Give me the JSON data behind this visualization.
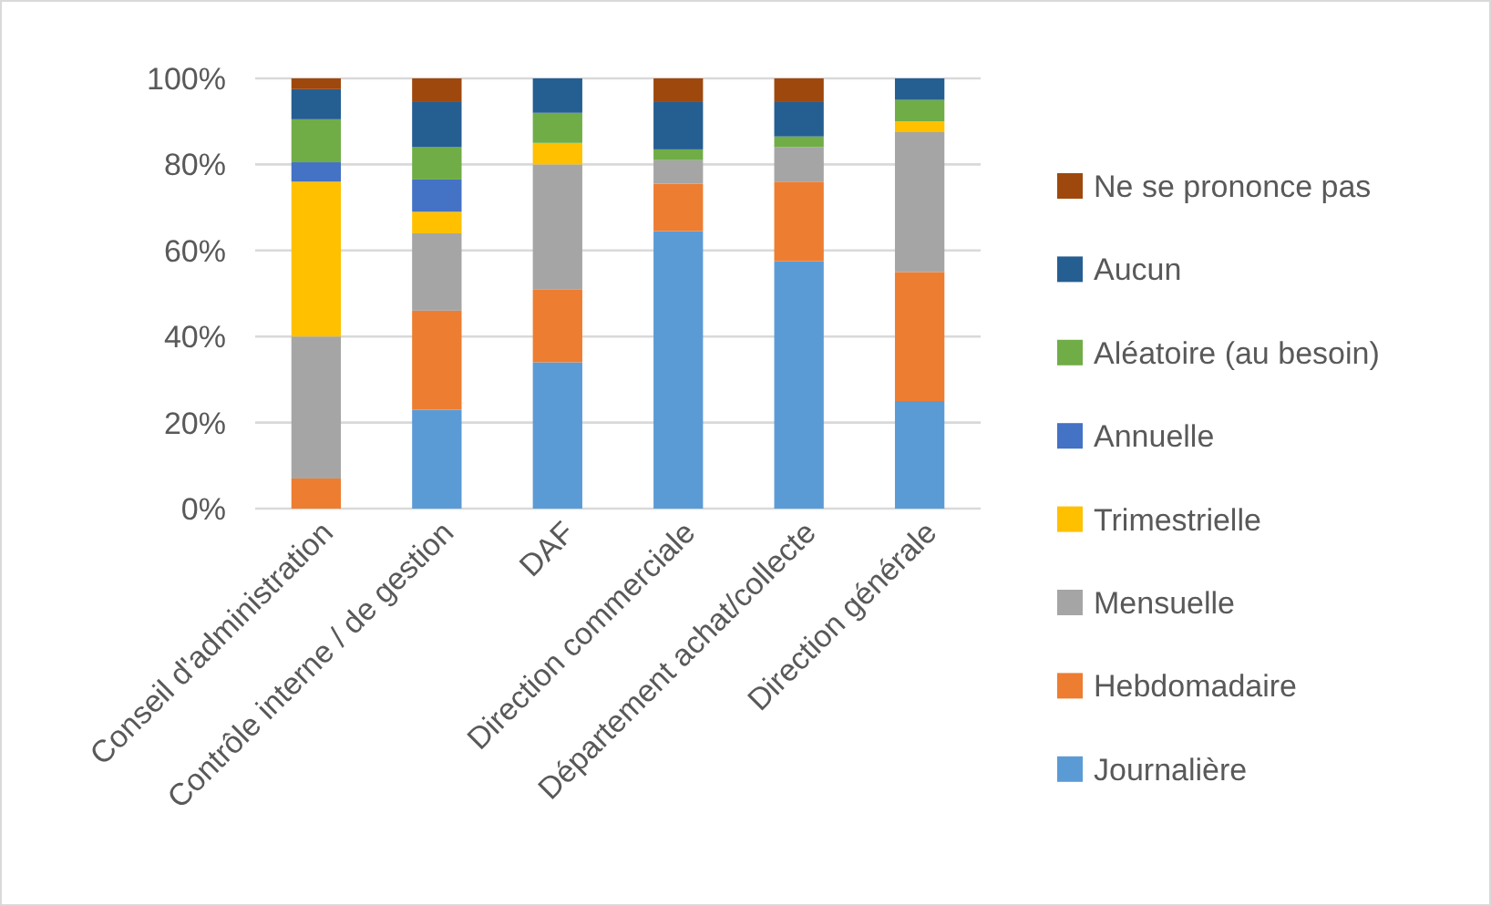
{
  "chart_data": {
    "type": "bar",
    "stacked": true,
    "categories": [
      "Conseil d'administration",
      "Contrôle interne / de gestion",
      "DAF",
      "Direction commerciale",
      "Département achat/collecte",
      "Direction générale"
    ],
    "series": [
      {
        "name": "Journalière",
        "color": "#5b9bd5",
        "values": [
          0,
          23,
          34,
          64.5,
          57.5,
          25
        ]
      },
      {
        "name": "Hebdomadaire",
        "color": "#ed7d31",
        "values": [
          7,
          23,
          17,
          11,
          18.5,
          30
        ]
      },
      {
        "name": "Mensuelle",
        "color": "#a5a5a5",
        "values": [
          33,
          18,
          29,
          5.5,
          8,
          32.5
        ]
      },
      {
        "name": "Trimestrielle",
        "color": "#ffc000",
        "values": [
          36,
          5,
          5,
          0,
          0,
          2.5
        ]
      },
      {
        "name": "Annuelle",
        "color": "#4472c4",
        "values": [
          4.5,
          7.5,
          0,
          0,
          0,
          0
        ]
      },
      {
        "name": "Aléatoire (au besoin)",
        "color": "#70ad47",
        "values": [
          10,
          7.5,
          7,
          2.5,
          2.5,
          5
        ]
      },
      {
        "name": "Aucun",
        "color": "#255e91",
        "values": [
          7,
          10.5,
          8,
          11,
          8,
          5
        ]
      },
      {
        "name": "Ne se prononce pas",
        "color": "#9e480e",
        "values": [
          2.5,
          5.5,
          0,
          5.5,
          5.5,
          0
        ]
      }
    ],
    "ylim": [
      0,
      100
    ],
    "yticks": [
      {
        "value": 0,
        "label": "0%"
      },
      {
        "value": 20,
        "label": "20%"
      },
      {
        "value": 40,
        "label": "40%"
      },
      {
        "value": 60,
        "label": "60%"
      },
      {
        "value": 80,
        "label": "80%"
      },
      {
        "value": 100,
        "label": "100%"
      }
    ],
    "grid": "y",
    "legend": "right"
  }
}
